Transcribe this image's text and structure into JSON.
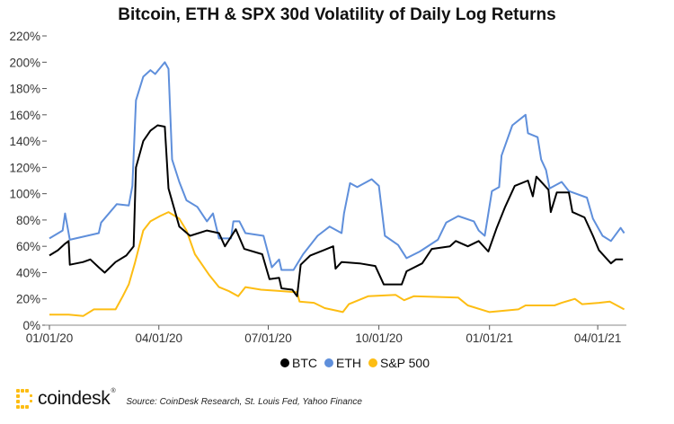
{
  "chart_data": {
    "type": "line",
    "title": "Bitcoin, ETH & SPX 30d Volatility of Daily Log Returns",
    "xlabel": "",
    "ylabel": "",
    "ylim": [
      0,
      220
    ],
    "xlim": [
      "2020-01-01",
      "2021-04-24"
    ],
    "y_ticks": [
      "0%",
      "20%",
      "40%",
      "60%",
      "80%",
      "100%",
      "120%",
      "140%",
      "160%",
      "180%",
      "200%",
      "220%"
    ],
    "y_tick_values": [
      0,
      20,
      40,
      60,
      80,
      100,
      120,
      140,
      160,
      180,
      200,
      220
    ],
    "x_ticks": [
      "01/01/20",
      "04/01/20",
      "07/01/20",
      "10/01/20",
      "01/01/21",
      "04/01/21"
    ],
    "x_tick_dates": [
      "2020-01-01",
      "2020-04-01",
      "2020-07-01",
      "2020-10-01",
      "2021-01-01",
      "2021-04-01"
    ],
    "grid": false,
    "legend_position": "bottom",
    "series": [
      {
        "name": "BTC",
        "color": "#000000",
        "points": [
          [
            "2020-01-01",
            53
          ],
          [
            "2020-01-08",
            57
          ],
          [
            "2020-01-14",
            62
          ],
          [
            "2020-01-17",
            64
          ],
          [
            "2020-01-18",
            46
          ],
          [
            "2020-01-29",
            48
          ],
          [
            "2020-02-04",
            50
          ],
          [
            "2020-02-11",
            44
          ],
          [
            "2020-02-16",
            40
          ],
          [
            "2020-02-25",
            48
          ],
          [
            "2020-03-05",
            53
          ],
          [
            "2020-03-11",
            60
          ],
          [
            "2020-03-13",
            120
          ],
          [
            "2020-03-19",
            140
          ],
          [
            "2020-03-25",
            148
          ],
          [
            "2020-03-31",
            152
          ],
          [
            "2020-04-06",
            151
          ],
          [
            "2020-04-09",
            104
          ],
          [
            "2020-04-18",
            75
          ],
          [
            "2020-04-27",
            68
          ],
          [
            "2020-05-11",
            72
          ],
          [
            "2020-05-21",
            70
          ],
          [
            "2020-05-26",
            60
          ],
          [
            "2020-06-04",
            73
          ],
          [
            "2020-06-11",
            58
          ],
          [
            "2020-06-26",
            54
          ],
          [
            "2020-07-02",
            35
          ],
          [
            "2020-07-10",
            36
          ],
          [
            "2020-07-12",
            28
          ],
          [
            "2020-07-21",
            27
          ],
          [
            "2020-07-25",
            22
          ],
          [
            "2020-07-28",
            46
          ],
          [
            "2020-08-05",
            53
          ],
          [
            "2020-08-16",
            57
          ],
          [
            "2020-08-24",
            60
          ],
          [
            "2020-08-26",
            43
          ],
          [
            "2020-08-31",
            48
          ],
          [
            "2020-09-15",
            47
          ],
          [
            "2020-09-28",
            45
          ],
          [
            "2020-10-05",
            31
          ],
          [
            "2020-10-20",
            31
          ],
          [
            "2020-10-24",
            41
          ],
          [
            "2020-11-06",
            47
          ],
          [
            "2020-11-14",
            58
          ],
          [
            "2020-11-29",
            60
          ],
          [
            "2020-12-04",
            64
          ],
          [
            "2020-12-14",
            60
          ],
          [
            "2020-12-23",
            64
          ],
          [
            "2020-12-31",
            56
          ],
          [
            "2021-01-07",
            74
          ],
          [
            "2021-01-14",
            90
          ],
          [
            "2021-01-22",
            106
          ],
          [
            "2021-02-02",
            110
          ],
          [
            "2021-02-06",
            98
          ],
          [
            "2021-02-09",
            113
          ],
          [
            "2021-02-19",
            103
          ],
          [
            "2021-02-21",
            86
          ],
          [
            "2021-02-26",
            101
          ],
          [
            "2021-03-08",
            101
          ],
          [
            "2021-03-11",
            86
          ],
          [
            "2021-03-21",
            82
          ],
          [
            "2021-03-28",
            68
          ],
          [
            "2021-04-02",
            57
          ],
          [
            "2021-04-12",
            47
          ],
          [
            "2021-04-16",
            50
          ],
          [
            "2021-04-22",
            50
          ]
        ]
      },
      {
        "name": "ETH",
        "color": "#5f8fdb",
        "points": [
          [
            "2020-01-01",
            66
          ],
          [
            "2020-01-12",
            72
          ],
          [
            "2020-01-14",
            85
          ],
          [
            "2020-01-18",
            65
          ],
          [
            "2020-02-11",
            70
          ],
          [
            "2020-02-13",
            78
          ],
          [
            "2020-02-26",
            92
          ],
          [
            "2020-03-07",
            91
          ],
          [
            "2020-03-10",
            106
          ],
          [
            "2020-03-13",
            171
          ],
          [
            "2020-03-19",
            189
          ],
          [
            "2020-03-25",
            194
          ],
          [
            "2020-03-29",
            191
          ],
          [
            "2020-04-06",
            200
          ],
          [
            "2020-04-09",
            195
          ],
          [
            "2020-04-12",
            126
          ],
          [
            "2020-04-18",
            109
          ],
          [
            "2020-04-24",
            95
          ],
          [
            "2020-05-03",
            90
          ],
          [
            "2020-05-11",
            79
          ],
          [
            "2020-05-16",
            85
          ],
          [
            "2020-05-21",
            66
          ],
          [
            "2020-05-31",
            66
          ],
          [
            "2020-06-02",
            79
          ],
          [
            "2020-06-07",
            79
          ],
          [
            "2020-06-12",
            70
          ],
          [
            "2020-06-27",
            68
          ],
          [
            "2020-07-04",
            44
          ],
          [
            "2020-07-10",
            50
          ],
          [
            "2020-07-12",
            42
          ],
          [
            "2020-07-22",
            42
          ],
          [
            "2020-07-30",
            54
          ],
          [
            "2020-08-11",
            68
          ],
          [
            "2020-08-21",
            75
          ],
          [
            "2020-08-31",
            70
          ],
          [
            "2020-09-02",
            85
          ],
          [
            "2020-09-07",
            108
          ],
          [
            "2020-09-13",
            105
          ],
          [
            "2020-09-25",
            111
          ],
          [
            "2020-10-01",
            106
          ],
          [
            "2020-10-06",
            68
          ],
          [
            "2020-10-17",
            61
          ],
          [
            "2020-10-24",
            51
          ],
          [
            "2020-11-04",
            56
          ],
          [
            "2020-11-19",
            65
          ],
          [
            "2020-11-26",
            78
          ],
          [
            "2020-12-06",
            83
          ],
          [
            "2020-12-19",
            79
          ],
          [
            "2020-12-23",
            72
          ],
          [
            "2020-12-28",
            68
          ],
          [
            "2021-01-03",
            102
          ],
          [
            "2021-01-09",
            105
          ],
          [
            "2021-01-11",
            129
          ],
          [
            "2021-01-20",
            152
          ],
          [
            "2021-01-31",
            160
          ],
          [
            "2021-02-02",
            146
          ],
          [
            "2021-02-10",
            143
          ],
          [
            "2021-02-13",
            126
          ],
          [
            "2021-02-17",
            118
          ],
          [
            "2021-02-20",
            104
          ],
          [
            "2021-03-02",
            109
          ],
          [
            "2021-03-08",
            102
          ],
          [
            "2021-03-23",
            97
          ],
          [
            "2021-03-28",
            81
          ],
          [
            "2021-04-05",
            68
          ],
          [
            "2021-04-12",
            64
          ],
          [
            "2021-04-20",
            74
          ],
          [
            "2021-04-23",
            70
          ]
        ]
      },
      {
        "name": "S&P 500",
        "color": "#fdbd13",
        "points": [
          [
            "2020-01-01",
            8
          ],
          [
            "2020-01-17",
            8
          ],
          [
            "2020-01-29",
            7
          ],
          [
            "2020-02-07",
            12
          ],
          [
            "2020-02-25",
            12
          ],
          [
            "2020-03-02",
            22
          ],
          [
            "2020-03-07",
            31
          ],
          [
            "2020-03-12",
            47
          ],
          [
            "2020-03-19",
            72
          ],
          [
            "2020-03-25",
            79
          ],
          [
            "2020-04-02",
            83
          ],
          [
            "2020-04-09",
            86
          ],
          [
            "2020-04-18",
            81
          ],
          [
            "2020-04-24",
            72
          ],
          [
            "2020-05-01",
            54
          ],
          [
            "2020-05-13",
            38
          ],
          [
            "2020-05-21",
            29
          ],
          [
            "2020-05-29",
            26
          ],
          [
            "2020-06-06",
            22
          ],
          [
            "2020-06-12",
            29
          ],
          [
            "2020-06-25",
            27
          ],
          [
            "2020-07-10",
            26
          ],
          [
            "2020-07-25",
            25
          ],
          [
            "2020-07-27",
            18
          ],
          [
            "2020-08-08",
            17
          ],
          [
            "2020-08-17",
            13
          ],
          [
            "2020-08-27",
            11
          ],
          [
            "2020-09-01",
            10
          ],
          [
            "2020-09-06",
            16
          ],
          [
            "2020-09-22",
            22
          ],
          [
            "2020-10-15",
            23
          ],
          [
            "2020-10-22",
            19
          ],
          [
            "2020-10-30",
            22
          ],
          [
            "2020-12-06",
            21
          ],
          [
            "2020-12-14",
            15
          ],
          [
            "2021-01-01",
            10
          ],
          [
            "2021-01-25",
            12
          ],
          [
            "2021-01-31",
            15
          ],
          [
            "2021-02-24",
            15
          ],
          [
            "2021-03-02",
            17
          ],
          [
            "2021-03-13",
            20
          ],
          [
            "2021-03-19",
            16
          ],
          [
            "2021-04-02",
            17
          ],
          [
            "2021-04-11",
            18
          ],
          [
            "2021-04-23",
            12
          ]
        ]
      }
    ]
  },
  "legend": {
    "items": [
      {
        "label": "BTC",
        "color": "#000000"
      },
      {
        "label": "ETH",
        "color": "#5f8fdb"
      },
      {
        "label": "S&P 500",
        "color": "#fdbd13"
      }
    ]
  },
  "footer": {
    "logo_text": "coindesk",
    "logo_mark": "®",
    "logo_color": "#fdbd13",
    "source": "Source: CoinDesk Research, St. Louis Fed, Yahoo Finance"
  }
}
